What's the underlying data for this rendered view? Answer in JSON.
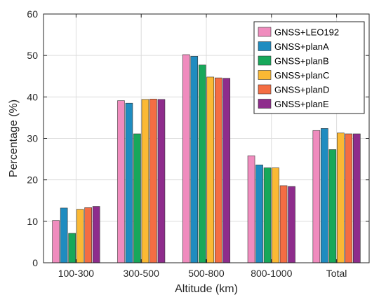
{
  "chart_data": {
    "type": "bar",
    "title": "",
    "xlabel": "Altitude (km)",
    "ylabel": "Percentage (%)",
    "ylim": [
      0,
      60
    ],
    "yticks": [
      "0",
      "10",
      "20",
      "30",
      "40",
      "50",
      "60"
    ],
    "categories": [
      "100-300",
      "300-500",
      "500-800",
      "800-1000",
      "Total"
    ],
    "grid": true,
    "legend_position": "top-right",
    "series": [
      {
        "name": "GNSS+LEO192",
        "color": "#f08cbe",
        "values": [
          10.2,
          39.1,
          50.2,
          25.8,
          31.9
        ]
      },
      {
        "name": "GNSS+planA",
        "color": "#1f8cc0",
        "values": [
          13.2,
          38.5,
          49.8,
          23.6,
          32.4
        ]
      },
      {
        "name": "GNSS+planB",
        "color": "#17a85a",
        "values": [
          7.1,
          31.1,
          47.7,
          22.9,
          27.3
        ]
      },
      {
        "name": "GNSS+planC",
        "color": "#fbb934",
        "values": [
          12.9,
          39.4,
          44.8,
          22.9,
          31.3
        ]
      },
      {
        "name": "GNSS+planD",
        "color": "#f46d43",
        "values": [
          13.3,
          39.5,
          44.6,
          18.6,
          31.1
        ]
      },
      {
        "name": "GNSS+planE",
        "color": "#8e2c8c",
        "values": [
          13.6,
          39.4,
          44.5,
          18.4,
          31.1
        ]
      }
    ]
  }
}
